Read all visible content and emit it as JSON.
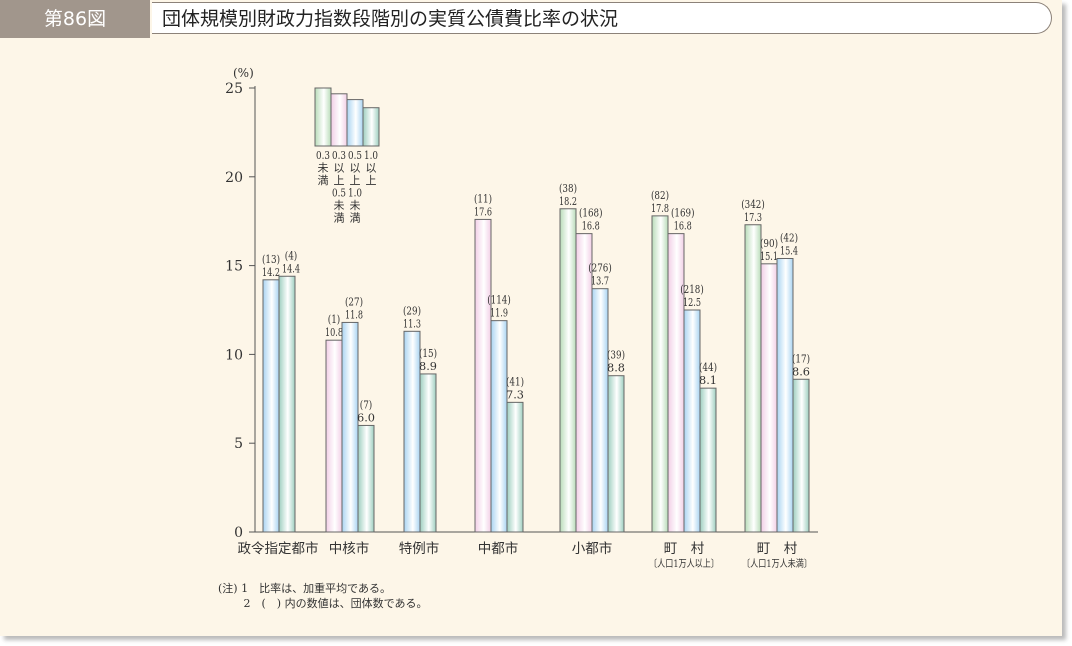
{
  "header": {
    "figure_number": "第86図",
    "title": "団体規模別財政力指数段階別の実質公債費比率の状況"
  },
  "chart_data": {
    "type": "bar",
    "title": "団体規模別財政力指数段階別の実質公債費比率の状況",
    "ylabel": "(%)",
    "ylim": [
      0,
      25
    ],
    "yticks": [
      0,
      5,
      10,
      15,
      20,
      25
    ],
    "categories": [
      {
        "label": "政令指定都市",
        "sub": ""
      },
      {
        "label": "中核市",
        "sub": ""
      },
      {
        "label": "特例市",
        "sub": ""
      },
      {
        "label": "中都市",
        "sub": ""
      },
      {
        "label": "小都市",
        "sub": ""
      },
      {
        "label": "町　村",
        "sub": "〔人口1万人以上〕"
      },
      {
        "label": "町　村",
        "sub": "〔人口1万人未満〕"
      }
    ],
    "series": [
      {
        "name": "0.3未満",
        "legend_lines": [
          "0.3",
          "未",
          "満"
        ],
        "color": "#b9dcb9",
        "values": [
          null,
          null,
          null,
          null,
          18.2,
          17.8,
          17.3
        ],
        "counts": [
          null,
          null,
          null,
          null,
          "(38)",
          "(82)",
          "(342)"
        ]
      },
      {
        "name": "0.3以上0.5未満",
        "legend_lines": [
          "0.3",
          "以",
          "上",
          "0.5",
          "未",
          "満"
        ],
        "color": "#f2cfe6",
        "values": [
          null,
          10.8,
          null,
          17.6,
          16.8,
          16.8,
          15.1
        ],
        "counts": [
          null,
          "(1)",
          null,
          "(11)",
          "(168)",
          "(169)",
          "(90)"
        ]
      },
      {
        "name": "0.5以上1.0未満",
        "legend_lines": [
          "0.5",
          "以",
          "上",
          "1.0",
          "未",
          "満"
        ],
        "color": "#a9d4f2",
        "values": [
          14.2,
          11.8,
          11.3,
          11.9,
          13.7,
          12.5,
          15.4
        ],
        "counts": [
          "(13)",
          "(27)",
          "(29)",
          "(114)",
          "(276)",
          "(218)",
          "(42)"
        ]
      },
      {
        "name": "1.0以上",
        "legend_lines": [
          "1.0",
          "以",
          "上"
        ],
        "color": "#9fcfc0",
        "values": [
          14.4,
          6.0,
          8.9,
          7.3,
          8.8,
          8.1,
          8.6
        ],
        "counts": [
          "(4)",
          "(7)",
          "(15)",
          "(41)",
          "(39)",
          "(44)",
          "(17)"
        ]
      }
    ],
    "legend": "top-left"
  },
  "notes": [
    "(注) 1　比率は、加重平均である。",
    "　　 2　(　) 内の数値は、団体数である。"
  ]
}
